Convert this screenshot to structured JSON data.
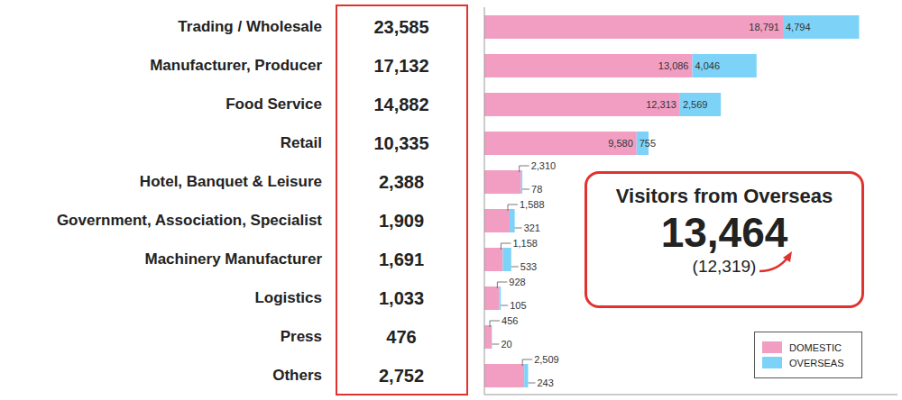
{
  "chart_data": {
    "type": "bar",
    "orientation": "horizontal",
    "stacked": true,
    "data_labels": true,
    "tick_labels": false,
    "grid": false,
    "legend": "lower right",
    "xlim": [
      0,
      26000
    ],
    "categories": [
      "Trading / Wholesale",
      "Manufacturer, Producer",
      "Food Service",
      "Retail",
      "Hotel, Banquet & Leisure",
      "Government, Association, Specialist",
      "Machinery Manufacturer",
      "Logistics",
      "Press",
      "Others"
    ],
    "series": [
      {
        "name": "DOMESTIC",
        "color": "#f19ec2",
        "values": [
          18791,
          13086,
          12313,
          9580,
          2310,
          1588,
          1158,
          928,
          456,
          2509
        ],
        "value_labels": [
          "18,791",
          "13,086",
          "12,313",
          "9,580",
          "2,310",
          "1,588",
          "1,158",
          "928",
          "456",
          "2,509"
        ]
      },
      {
        "name": "OVERSEAS",
        "color": "#7dd3f7",
        "values": [
          4794,
          4046,
          2569,
          755,
          78,
          321,
          533,
          105,
          20,
          243
        ],
        "value_labels": [
          "4,794",
          "4,046",
          "2,569",
          "755",
          "78",
          "321",
          "533",
          "105",
          "20",
          "243"
        ]
      }
    ],
    "totals": {
      "values": [
        23585,
        17132,
        14882,
        10335,
        2388,
        1909,
        1691,
        1033,
        476,
        2752
      ],
      "value_labels": [
        "23,585",
        "17,132",
        "14,882",
        "10,335",
        "2,388",
        "1,909",
        "1,691",
        "1,033",
        "476",
        "2,752"
      ]
    },
    "annotation": {
      "title": "Visitors from Overseas",
      "value": 13464,
      "value_label": "13,464",
      "previous": 12319,
      "previous_label": "(12,319)"
    }
  }
}
